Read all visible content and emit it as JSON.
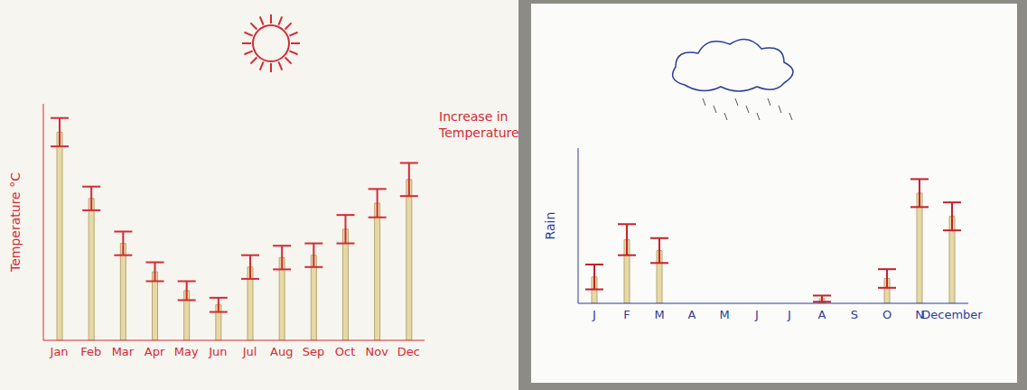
{
  "chart_data": [
    {
      "type": "bar",
      "y_label": "Temperature °C",
      "annotations": [
        "Increase in Temperature"
      ],
      "categories": [
        "Jan",
        "Feb",
        "Mar",
        "Apr",
        "May",
        "Jun",
        "Jul",
        "Aug",
        "Sep",
        "Oct",
        "Nov",
        "Dec"
      ],
      "values": [
        88,
        60,
        41,
        29,
        21,
        15,
        31,
        35,
        36,
        47,
        58,
        68
      ],
      "errors": [
        6,
        5,
        5,
        4,
        4,
        3,
        5,
        5,
        5,
        6,
        6,
        7
      ],
      "color": "#e6d9a8",
      "ylim": [
        0,
        100
      ],
      "grid": false,
      "tick_labels": "x"
    },
    {
      "type": "bar",
      "y_label": "Rain",
      "annotations": [],
      "categories": [
        "J",
        "F",
        "M",
        "A",
        "M",
        "J",
        "J",
        "A",
        "S",
        "O",
        "N",
        "December"
      ],
      "values": [
        17,
        41,
        34,
        0,
        0,
        0,
        0,
        3,
        0,
        16,
        71,
        56
      ],
      "errors": [
        8,
        10,
        8,
        0,
        0,
        0,
        0,
        2,
        0,
        6,
        9,
        9
      ],
      "color": "#e6d9a8",
      "ylim": [
        0,
        100
      ],
      "grid": false,
      "tick_labels": "x"
    }
  ]
}
